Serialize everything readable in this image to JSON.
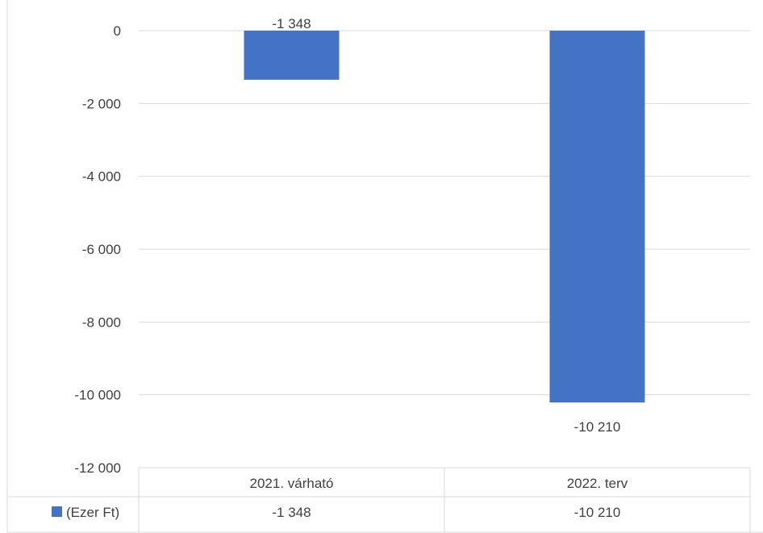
{
  "chart_data": {
    "type": "bar",
    "categories": [
      "2021. várható",
      "2022. terv"
    ],
    "series": [
      {
        "name": "(Ezer Ft)",
        "values": [
          -1348,
          -10210
        ],
        "value_labels": [
          "-1 348",
          "-10 210"
        ],
        "color": "#4472c4"
      }
    ],
    "ylim": [
      -12000,
      0
    ],
    "yticks": [
      0,
      -2000,
      -4000,
      -6000,
      -8000,
      -10000,
      -12000
    ],
    "ytick_labels": [
      "0",
      "-2 000",
      "-4 000",
      "-6 000",
      "-8 000",
      "-10 000",
      "-12 000"
    ],
    "grid": true,
    "legend": "data-table",
    "data_table": true,
    "title": "",
    "xlabel": "",
    "ylabel": ""
  }
}
